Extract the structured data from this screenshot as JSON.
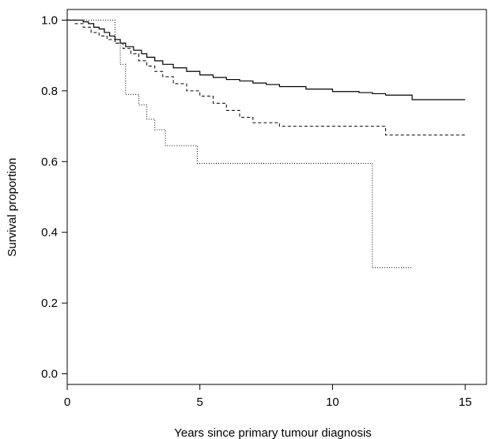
{
  "chart_data": {
    "type": "line",
    "step": true,
    "title": "",
    "xlabel": "Years since primary tumour diagnosis",
    "ylabel": "Survival proportion",
    "xlim": [
      0,
      15.8
    ],
    "ylim": [
      -0.03,
      1.03
    ],
    "xticks": [
      0,
      5,
      10,
      15
    ],
    "xtick_labels": [
      "0",
      "5",
      "10",
      "15"
    ],
    "yticks": [
      0.0,
      0.2,
      0.4,
      0.6,
      0.8,
      1.0
    ],
    "ytick_labels": [
      "0.0",
      "0.2",
      "0.4",
      "0.6",
      "0.8",
      "1.0"
    ],
    "grid": false,
    "legend": "none",
    "series": [
      {
        "line_style": "solid",
        "color": "#000000",
        "x": [
          0,
          0.6,
          0.8,
          1.0,
          1.2,
          1.4,
          1.6,
          1.8,
          2.0,
          2.2,
          2.5,
          2.8,
          3.0,
          3.3,
          3.6,
          4.0,
          4.5,
          5.0,
          5.5,
          6.0,
          6.5,
          7.0,
          7.5,
          8.0,
          9.0,
          10.0,
          11.0,
          11.5,
          12.0,
          13.0,
          15.0
        ],
        "y": [
          1.0,
          0.995,
          0.99,
          0.98,
          0.975,
          0.965,
          0.955,
          0.945,
          0.935,
          0.925,
          0.915,
          0.905,
          0.895,
          0.885,
          0.875,
          0.865,
          0.855,
          0.845,
          0.838,
          0.832,
          0.828,
          0.822,
          0.818,
          0.812,
          0.805,
          0.798,
          0.795,
          0.792,
          0.788,
          0.775,
          0.775
        ]
      },
      {
        "line_style": "dashed",
        "color": "#000000",
        "x": [
          0,
          0.3,
          0.6,
          0.9,
          1.2,
          1.5,
          1.8,
          2.1,
          2.4,
          2.7,
          3.0,
          3.3,
          3.6,
          4.0,
          4.5,
          5.0,
          5.5,
          6.0,
          6.5,
          7.0,
          8.0,
          9.0,
          10.0,
          11.0,
          11.9,
          12.0,
          15.0
        ],
        "y": [
          1.0,
          0.99,
          0.98,
          0.965,
          0.955,
          0.945,
          0.935,
          0.92,
          0.905,
          0.885,
          0.87,
          0.855,
          0.84,
          0.82,
          0.8,
          0.785,
          0.765,
          0.745,
          0.725,
          0.71,
          0.7,
          0.7,
          0.7,
          0.7,
          0.7,
          0.675,
          0.675
        ]
      },
      {
        "line_style": "dotted",
        "color": "#000000",
        "x": [
          0,
          1.8,
          2.0,
          2.2,
          2.7,
          3.0,
          3.3,
          3.7,
          4.9,
          11.5,
          13.0
        ],
        "y": [
          1.0,
          0.935,
          0.875,
          0.79,
          0.76,
          0.72,
          0.69,
          0.645,
          0.595,
          0.3,
          0.3
        ]
      }
    ]
  }
}
